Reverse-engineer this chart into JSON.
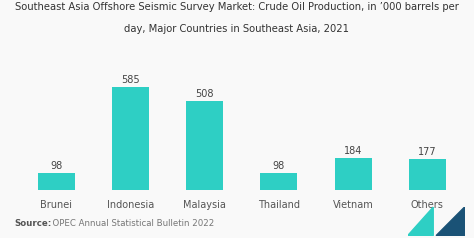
{
  "title_line1": "Southeast Asia Offshore Seismic Survey Market: Crude Oil Production, in ’000 barrels per",
  "title_line2": "day, Major Countries in Southeast Asia, 2021",
  "categories": [
    "Brunei",
    "Indonesia",
    "Malaysia",
    "Thailand",
    "Vietnam",
    "Others"
  ],
  "values": [
    98,
    585,
    508,
    98,
    184,
    177
  ],
  "bar_color": "#2ecfc4",
  "background_color": "#f9f9f9",
  "title_fontsize": 7.2,
  "label_fontsize": 7.0,
  "value_fontsize": 7.0,
  "source_bold": "Source:",
  "source_normal": "  OPEC Annual Statistical Bulletin 2022",
  "source_fontsize": 6.2,
  "ylim": [
    0,
    700
  ]
}
